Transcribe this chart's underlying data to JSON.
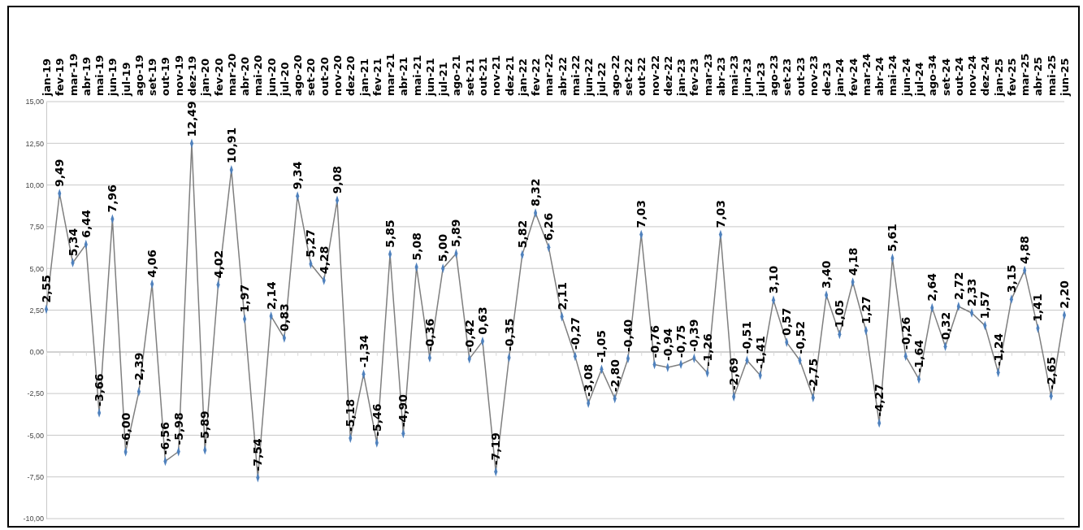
{
  "chart_data": {
    "type": "line",
    "categories": [
      "jan-19",
      "fev-19",
      "mar-19",
      "abr-19",
      "mai-19",
      "jun-19",
      "jul-19",
      "ago-19",
      "set-19",
      "out-19",
      "nov-19",
      "dez-19",
      "jan-20",
      "fev-20",
      "mar-20",
      "abr-20",
      "mai-20",
      "jun-20",
      "jul-20",
      "ago-20",
      "set-20",
      "out-20",
      "nov-20",
      "dez-20",
      "jan-21",
      "fev-21",
      "mar-21",
      "abr-21",
      "mai-21",
      "jun-21",
      "jul-21",
      "ago-21",
      "set-21",
      "out-21",
      "nov-21",
      "dez-21",
      "jan-22",
      "fev-22",
      "mar-22",
      "abr-22",
      "mai-22",
      "jun-22",
      "jul-22",
      "ago-22",
      "set-22",
      "out-22",
      "nov-22",
      "dez-22",
      "jan-23",
      "fev-23",
      "mar-23",
      "abr-23",
      "mai-23",
      "jun-23",
      "jul-23",
      "ago-23",
      "set-23",
      "out-23",
      "nov-23",
      "de-23",
      "jan-24",
      "fev-24",
      "mar-24",
      "abr-24",
      "mai-24",
      "jun-24",
      "jul-24",
      "ago-34",
      "set-24",
      "out-24",
      "nov-24",
      "dez-24",
      "jan-25",
      "fev-25",
      "mar-25",
      "abr-25",
      "mai-25",
      "jun-25"
    ],
    "series": [
      {
        "color": "#7f7f7f",
        "values": [
          2.55,
          9.49,
          5.34,
          6.44,
          -3.66,
          7.96,
          -6.0,
          -2.39,
          4.06,
          -6.56,
          -5.98,
          12.49,
          -5.89,
          4.02,
          10.91,
          1.97,
          -7.54,
          2.14,
          0.83,
          9.34,
          5.27,
          4.28,
          9.08,
          -5.18,
          -1.34,
          -5.46,
          5.85,
          -4.9,
          5.08,
          -0.36,
          5.0,
          5.89,
          -0.42,
          0.63,
          -7.19,
          -0.35,
          5.82,
          8.32,
          6.26,
          2.11,
          -0.27,
          -3.08,
          -1.05,
          -2.8,
          -0.4,
          7.03,
          -0.76,
          -0.94,
          -0.75,
          -0.39,
          -1.26,
          7.03,
          -2.69,
          -0.51,
          -1.41,
          3.1,
          0.57,
          -0.52,
          -2.75,
          3.4,
          1.05,
          4.18,
          1.27,
          -4.27,
          5.61,
          -0.26,
          -1.64,
          2.64,
          0.32,
          2.72,
          2.33,
          1.57,
          -1.24,
          3.15,
          4.88,
          1.41,
          -2.65,
          2.2
        ],
        "value_labels": [
          "2,55",
          "9,49",
          "5,34",
          "6,44",
          "-3,66",
          "7,96",
          "-6,00",
          "-2,39",
          "4,06",
          "-6,56",
          "-5,98",
          "12,49",
          "-5,89",
          "4,02",
          "10,91",
          "1,97",
          "-7,54",
          "2,14",
          "0,83",
          "9,34",
          "5,27",
          "4,28",
          "9,08",
          "-5,18",
          "-1,34",
          "-5,46",
          "5,85",
          "-4,90",
          "5,08",
          "-0,36",
          "5,00",
          "5,89",
          "-0,42",
          "0,63",
          "-7,19",
          "-0,35",
          "5,82",
          "8,32",
          "6,26",
          "2,11",
          "-0,27",
          "-3,08",
          "-1,05",
          "-2,80",
          "-0,40",
          "7,03",
          "-0,76",
          "-0,94",
          "-0,75",
          "-0,39",
          "-1,26",
          "7,03",
          "-2,69",
          "-0,51",
          "-1,41",
          "3,10",
          "0,57",
          "-0,52",
          "-2,75",
          "3,40",
          "1,05",
          "4,18",
          "1,27",
          "-4,27",
          "5,61",
          "-0,26",
          "-1,64",
          "2,64",
          "0,32",
          "2,72",
          "2,33",
          "1,57",
          "-1,24",
          "3,15",
          "4,88",
          "1,41",
          "-2,65",
          "2,20"
        ]
      }
    ],
    "ylim": [
      -10,
      15
    ],
    "yticks": [
      {
        "value": -10,
        "label": "-10,00"
      },
      {
        "value": -7.5,
        "label": "-7,50"
      },
      {
        "value": -5,
        "label": "-5,00"
      },
      {
        "value": -2.5,
        "label": "-2,50"
      },
      {
        "value": 0,
        "label": "0,00"
      },
      {
        "value": 2.5,
        "label": "2,50"
      },
      {
        "value": 5,
        "label": "5,00"
      },
      {
        "value": 7.5,
        "label": "7,50"
      },
      {
        "value": 10,
        "label": "10,00"
      },
      {
        "value": 12.5,
        "label": "12,50"
      },
      {
        "value": 15,
        "label": "15,00"
      }
    ],
    "grid": "y",
    "marker": "diamond",
    "line_style": "solid"
  }
}
